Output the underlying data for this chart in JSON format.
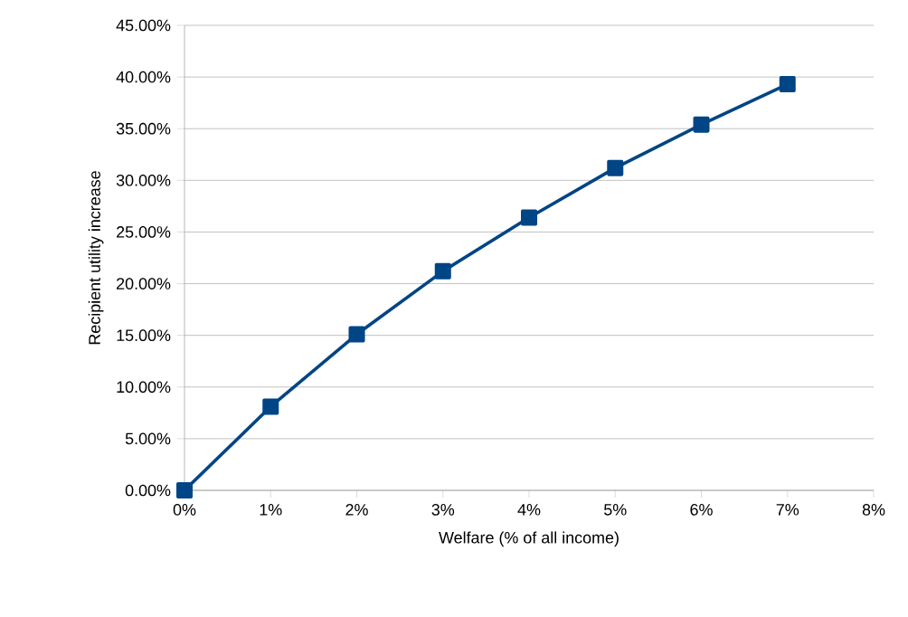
{
  "chart_data": {
    "type": "line",
    "xlabel": "Welfare (% of all income)",
    "ylabel": "Recipient utility increase",
    "x": [
      0,
      1,
      2,
      3,
      4,
      5,
      6,
      7
    ],
    "series": [
      {
        "color": "#004586",
        "values": [
          0,
          8.1,
          15.1,
          21.2,
          26.4,
          31.2,
          35.4,
          39.3
        ]
      }
    ],
    "xlim": [
      0,
      8
    ],
    "ylim": [
      0,
      45
    ],
    "xticks": [
      {
        "value": 0,
        "label": "0%"
      },
      {
        "value": 1,
        "label": "1%"
      },
      {
        "value": 2,
        "label": "2%"
      },
      {
        "value": 3,
        "label": "3%"
      },
      {
        "value": 4,
        "label": "4%"
      },
      {
        "value": 5,
        "label": "5%"
      },
      {
        "value": 6,
        "label": "6%"
      },
      {
        "value": 7,
        "label": "7%"
      },
      {
        "value": 8,
        "label": "8%"
      }
    ],
    "yticks": [
      {
        "value": 0,
        "label": "0.00%"
      },
      {
        "value": 5,
        "label": "5.00%"
      },
      {
        "value": 10,
        "label": "10.00%"
      },
      {
        "value": 15,
        "label": "15.00%"
      },
      {
        "value": 20,
        "label": "20.00%"
      },
      {
        "value": 25,
        "label": "25.00%"
      },
      {
        "value": 30,
        "label": "30.00%"
      },
      {
        "value": 35,
        "label": "35.00%"
      },
      {
        "value": 40,
        "label": "40.00%"
      },
      {
        "value": 45,
        "label": "45.00%"
      }
    ],
    "grid": "y",
    "marker": "square",
    "line_style": "solid"
  }
}
